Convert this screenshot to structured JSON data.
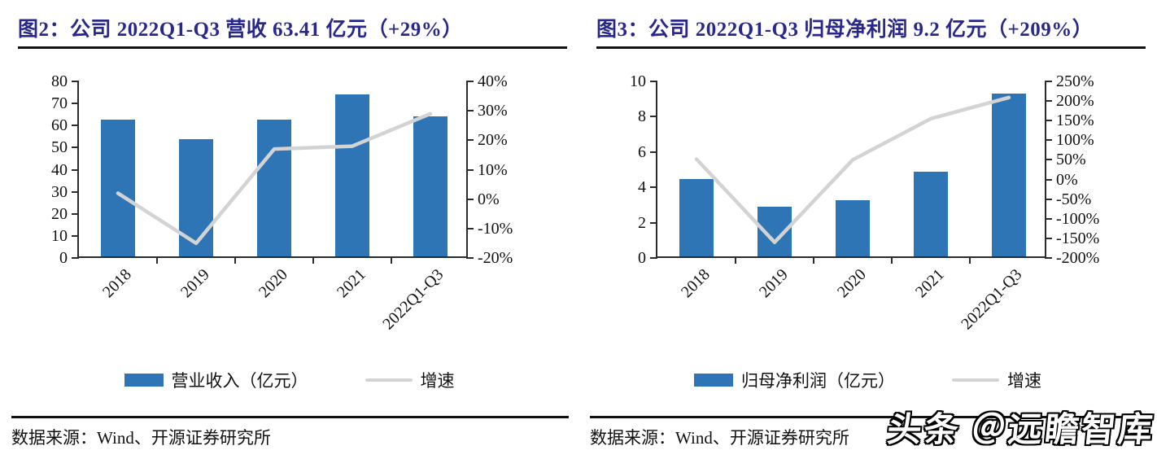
{
  "colors": {
    "bar": "#2E75B6",
    "line": "#D3D3D3",
    "title": "#28288C",
    "rule": "#111111",
    "axis": "#2B2B2B"
  },
  "watermark": {
    "text": "头条 ＠远瞻智库"
  },
  "chart_data": [
    {
      "type": "bar",
      "subtype": "bar+line-dual-axis",
      "title": "图2：公司 2022Q1-Q3 营收 63.41 亿元（+29%）",
      "source": "数据来源：Wind、开源证券研究所",
      "categories": [
        "2018",
        "2019",
        "2020",
        "2021",
        "2022Q1-Q3"
      ],
      "series": [
        {
          "name": "营业收入（亿元）",
          "type": "bar",
          "axis": "left",
          "values": [
            62.0,
            53.0,
            62.0,
            73.4,
            63.41
          ]
        },
        {
          "name": "增速",
          "type": "line",
          "axis": "right",
          "unit": "%",
          "values": [
            2,
            -15,
            17,
            18,
            29
          ]
        }
      ],
      "left_axis": {
        "min": 0,
        "max": 80,
        "tick_labels": [
          "80",
          "70",
          "60",
          "50",
          "40",
          "30",
          "20",
          "10",
          "0"
        ]
      },
      "right_axis": {
        "min": -200,
        "max": 40,
        "note": "values in percent",
        "tick_labels": [
          "40%",
          "30%",
          "20%",
          "10%",
          "0%",
          "-10%",
          "-20%"
        ],
        "tick_min": -20,
        "tick_max": 40
      },
      "grid": false,
      "legend_position": "bottom"
    },
    {
      "type": "bar",
      "subtype": "bar+line-dual-axis",
      "title": "图3：公司 2022Q1-Q3 归母净利润 9.2 亿元（+209%）",
      "source": "数据来源：Wind、开源证券研究所",
      "categories": [
        "2018",
        "2019",
        "2020",
        "2021",
        "2022Q1-Q3"
      ],
      "series": [
        {
          "name": "归母净利润（亿元）",
          "type": "bar",
          "axis": "left",
          "values": [
            4.4,
            2.8,
            3.2,
            4.8,
            9.2
          ]
        },
        {
          "name": "增速",
          "type": "line",
          "axis": "right",
          "unit": "%",
          "values": [
            52,
            -160,
            50,
            155,
            209
          ]
        }
      ],
      "left_axis": {
        "min": 0,
        "max": 10,
        "tick_labels": [
          "10",
          "8",
          "6",
          "4",
          "2",
          "0"
        ]
      },
      "right_axis": {
        "min": -200,
        "max": 250,
        "note": "values in percent",
        "tick_labels": [
          "250%",
          "200%",
          "150%",
          "100%",
          "50%",
          "0%",
          "-50%",
          "-100%",
          "-150%",
          "-200%"
        ],
        "tick_min": -200,
        "tick_max": 250
      },
      "grid": false,
      "legend_position": "bottom"
    }
  ]
}
